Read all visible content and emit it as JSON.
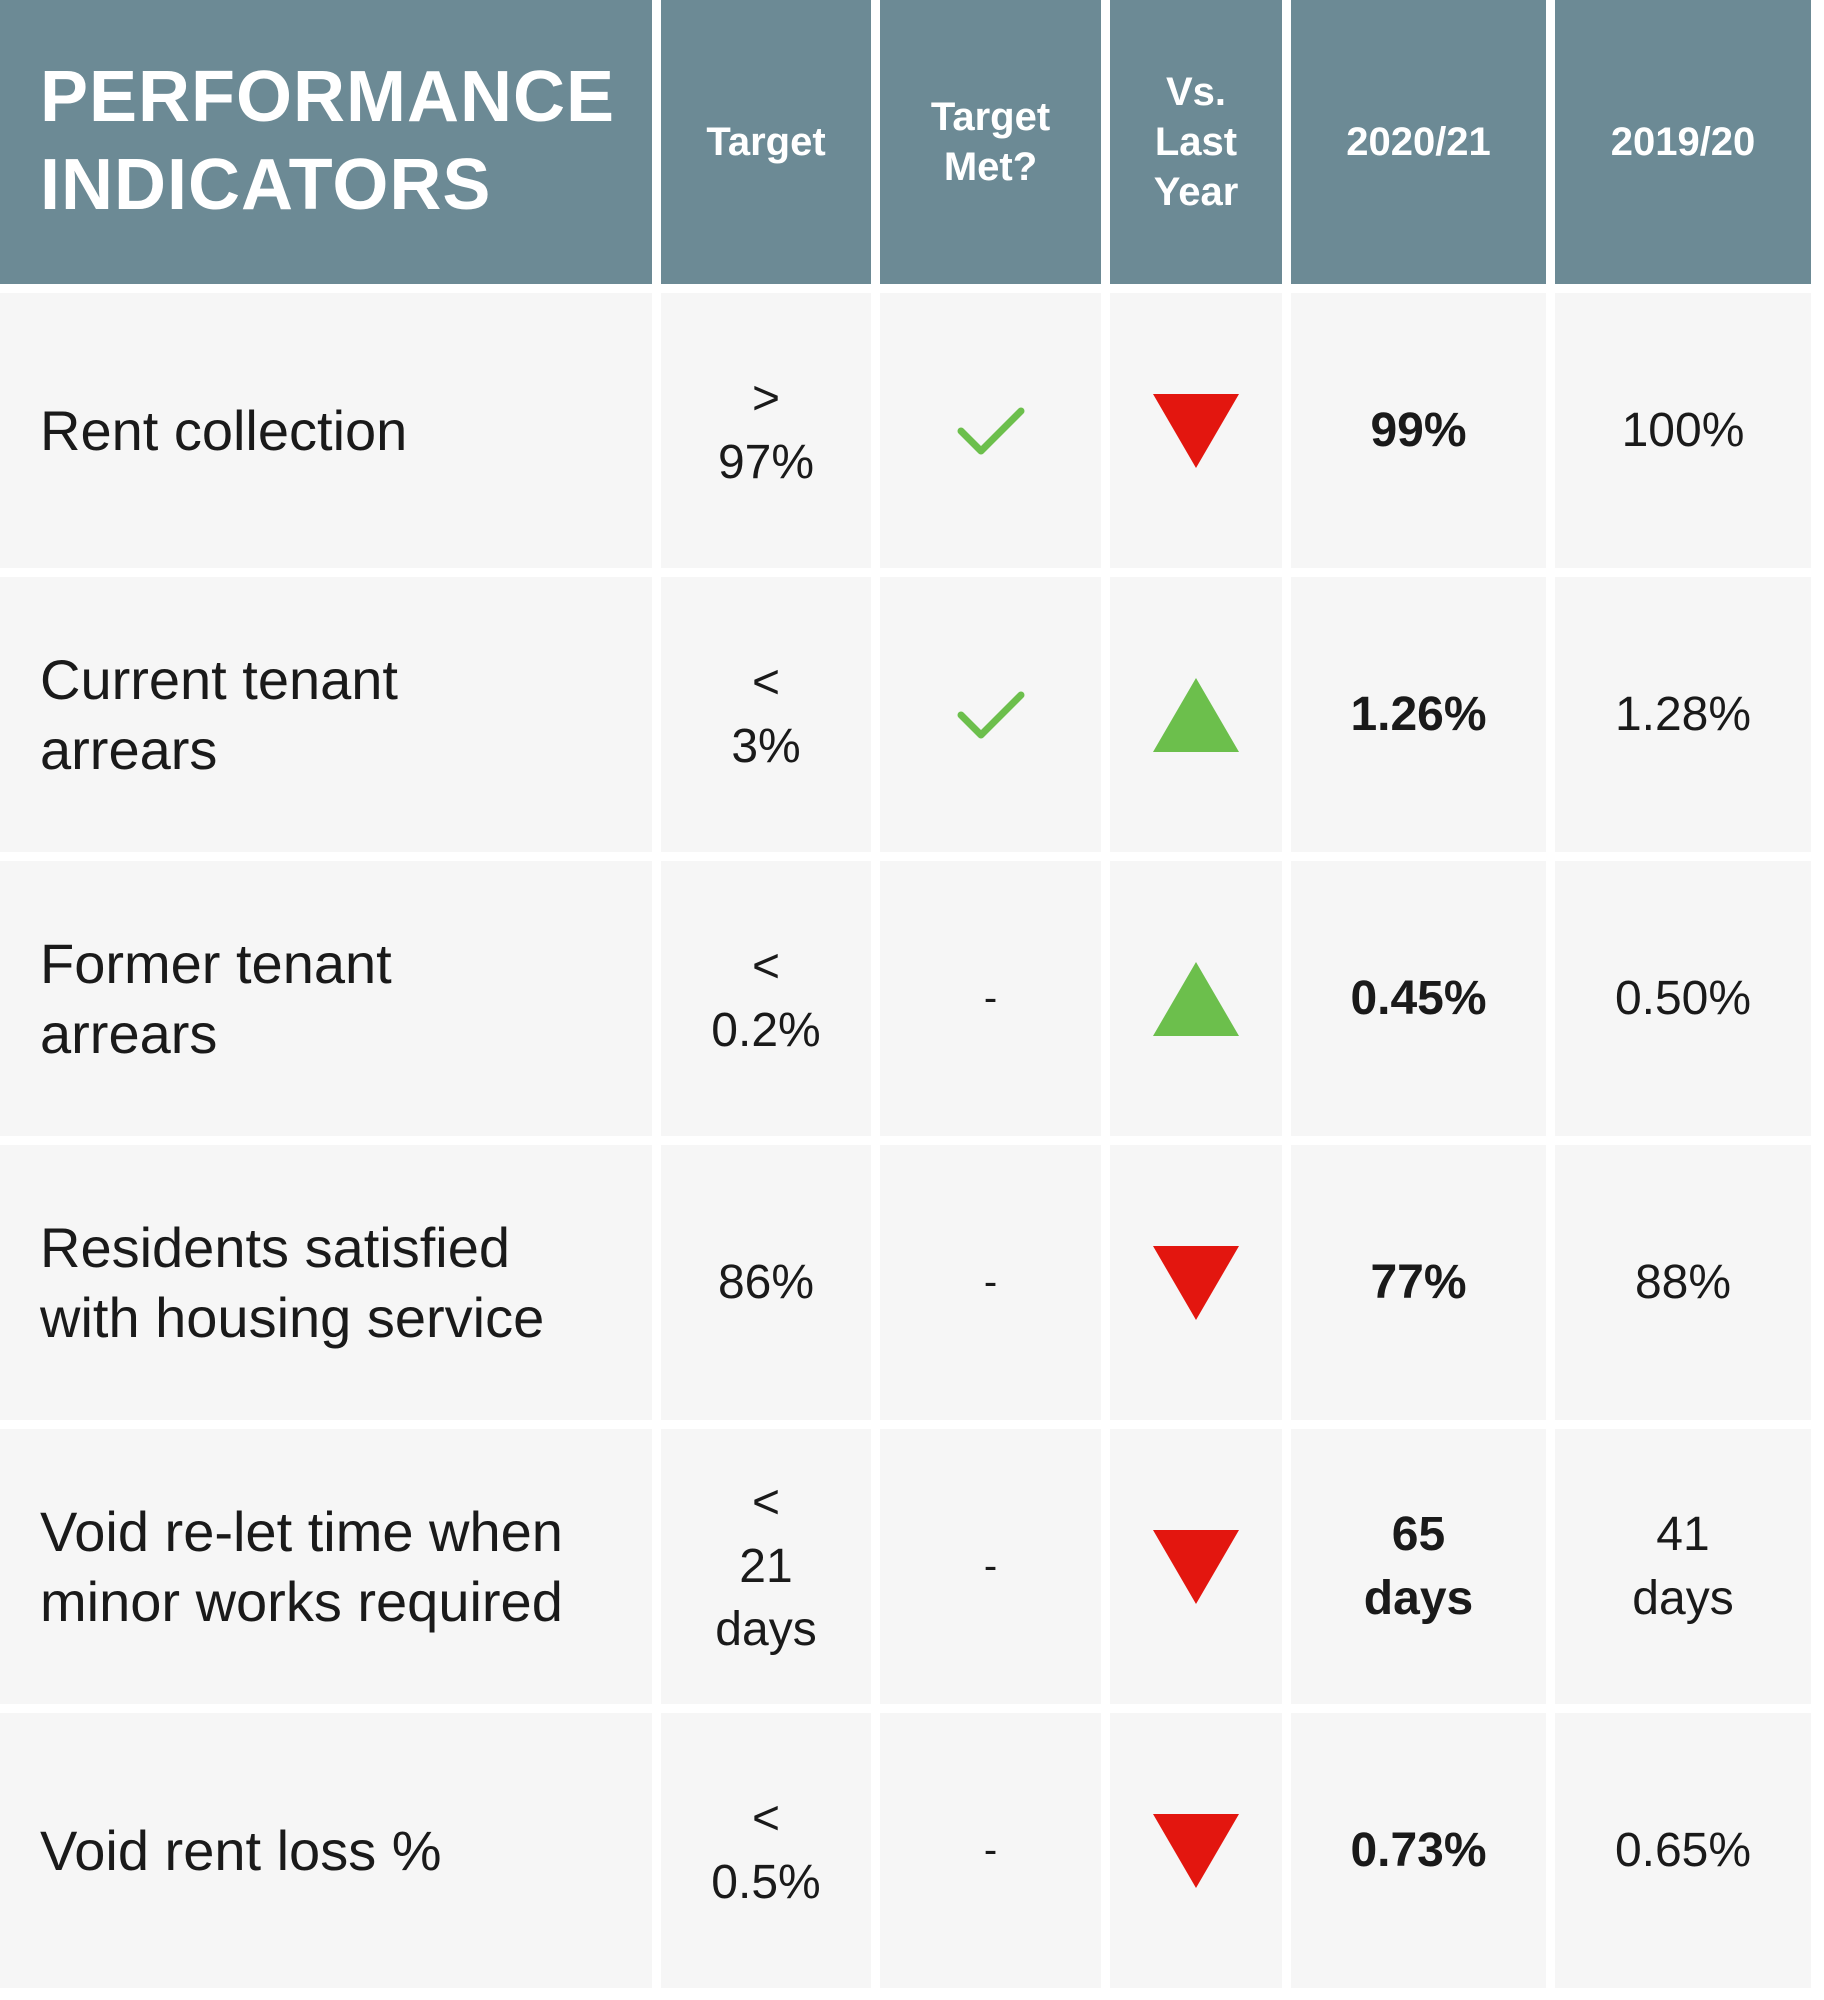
{
  "header": {
    "title": "PERFORMANCE\nINDICATORS",
    "target": "Target",
    "target_met": "Target\nMet?",
    "vs_last_year": "Vs.\nLast\nYear",
    "current_year": "2020/21",
    "previous_year": "2019/20"
  },
  "colors": {
    "header_bg": "#6c8a95",
    "check": "#6cbf4c",
    "up": "#6cbf4c",
    "down": "#e3160f"
  },
  "rows": [
    {
      "indicator": "Rent collection",
      "target": ">\n97%",
      "target_met": "check-icon",
      "trend": "down",
      "current": "99%",
      "previous": "100%"
    },
    {
      "indicator": "Current tenant\narrears",
      "target": "<\n3%",
      "target_met": "check-icon",
      "trend": "up",
      "current": "1.26%",
      "previous": "1.28%"
    },
    {
      "indicator": "Former tenant\narrears",
      "target": "<\n0.2%",
      "target_met": "-",
      "trend": "up",
      "current": "0.45%",
      "previous": "0.50%"
    },
    {
      "indicator": "Residents satisfied\nwith housing service",
      "target": "86%",
      "target_met": "-",
      "trend": "down",
      "current": "77%",
      "previous": "88%"
    },
    {
      "indicator": "Void re-let time when\nminor works required",
      "target": "<\n21\ndays",
      "target_met": "-",
      "trend": "down",
      "current": "65\ndays",
      "previous": "41\ndays"
    },
    {
      "indicator": "Void rent loss %",
      "target": "<\n0.5%",
      "target_met": "-",
      "trend": "down",
      "current": "0.73%",
      "previous": "0.65%"
    }
  ]
}
